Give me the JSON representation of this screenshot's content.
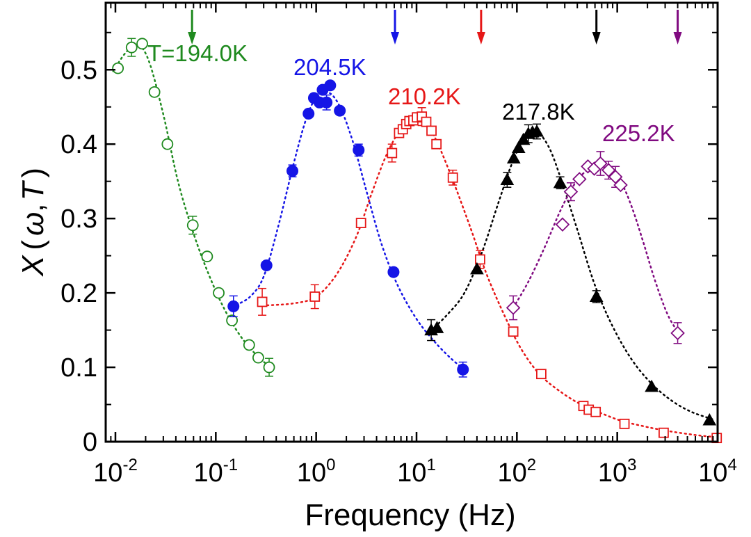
{
  "chart_data": {
    "type": "scatter",
    "title": "",
    "xlabel": "Frequency (Hz)",
    "ylabel_parts": {
      "x": "X",
      "open": "(",
      "omega": "ω",
      "comma": ",",
      "t": "T",
      "close": ")"
    },
    "x_scale": "log",
    "xlim": [
      0.008,
      10000
    ],
    "ylim": [
      0,
      0.59
    ],
    "x_ticks": [
      {
        "value": 0.01,
        "base": "10",
        "exp": "-2"
      },
      {
        "value": 0.1,
        "base": "10",
        "exp": "-1"
      },
      {
        "value": 1,
        "base": "10",
        "exp": "0"
      },
      {
        "value": 10,
        "base": "10",
        "exp": "1"
      },
      {
        "value": 100,
        "base": "10",
        "exp": "2"
      },
      {
        "value": 1000,
        "base": "10",
        "exp": "3"
      },
      {
        "value": 10000,
        "base": "10",
        "exp": "4"
      }
    ],
    "y_ticks": [
      {
        "value": 0,
        "label": "0"
      },
      {
        "value": 0.1,
        "label": "0.1"
      },
      {
        "value": 0.2,
        "label": "0.2"
      },
      {
        "value": 0.3,
        "label": "0.3"
      },
      {
        "value": 0.4,
        "label": "0.4"
      },
      {
        "value": 0.5,
        "label": "0.5"
      }
    ],
    "grid": false,
    "series": [
      {
        "name": "T=194.0K",
        "marker": "circle-open",
        "color": "#1f8a1f",
        "arrow_x": 0.058,
        "x": [
          0.0106,
          0.0145,
          0.0185,
          0.0245,
          0.033,
          0.059,
          0.082,
          0.107,
          0.145,
          0.215,
          0.265,
          0.34
        ],
        "y": [
          0.502,
          0.53,
          0.535,
          0.47,
          0.4,
          0.291,
          0.249,
          0.2,
          0.163,
          0.13,
          0.113,
          0.1
        ],
        "err": [
          0,
          0.012,
          0,
          0,
          0,
          0.012,
          0,
          0,
          0,
          0,
          0,
          0.012
        ]
      },
      {
        "name": "204.5K",
        "marker": "circle-filled",
        "color": "#1515e6",
        "arrow_x": 6.1,
        "x": [
          0.15,
          0.32,
          0.58,
          0.84,
          0.95,
          1.08,
          1.16,
          1.27,
          1.38,
          1.72,
          2.65,
          5.9,
          29
        ],
        "y": [
          0.182,
          0.237,
          0.364,
          0.441,
          0.462,
          0.456,
          0.473,
          0.456,
          0.479,
          0.445,
          0.392,
          0.228,
          0.097
        ],
        "err": [
          0.014,
          0,
          0.008,
          0,
          0,
          0,
          0,
          0.01,
          0,
          0,
          0.008,
          0,
          0.01
        ]
      },
      {
        "name": "210.2K",
        "marker": "square-open",
        "color": "#e61717",
        "arrow_x": 44,
        "x": [
          0.29,
          0.97,
          2.8,
          5.7,
          6.7,
          7.3,
          7.9,
          8.5,
          9.3,
          10.1,
          11.3,
          12.5,
          14.1,
          15.8,
          23,
          43,
          92,
          175,
          460,
          520,
          610,
          1180,
          2900,
          9800
        ],
        "y": [
          0.188,
          0.195,
          0.294,
          0.388,
          0.415,
          0.42,
          0.427,
          0.431,
          0.432,
          0.436,
          0.437,
          0.43,
          0.418,
          0.4,
          0.355,
          0.245,
          0.148,
          0.091,
          0.048,
          0.043,
          0.04,
          0.024,
          0.012,
          0.005
        ],
        "err": [
          0.018,
          0.016,
          0,
          0.012,
          0,
          0,
          0,
          0,
          0,
          0,
          0.012,
          0,
          0,
          0,
          0.01,
          0.012,
          0,
          0,
          0,
          0,
          0,
          0,
          0,
          0
        ]
      },
      {
        "name": "217.8K",
        "marker": "triangle-filled",
        "color": "#000000",
        "arrow_x": 620,
        "x": [
          14,
          16,
          40,
          80,
          93,
          104,
          116,
          130,
          143,
          158,
          270,
          620,
          2200,
          8300
        ],
        "y": [
          0.15,
          0.153,
          0.232,
          0.352,
          0.381,
          0.395,
          0.406,
          0.414,
          0.416,
          0.417,
          0.348,
          0.195,
          0.074,
          0.029
        ],
        "err": [
          0.014,
          0,
          0,
          0.01,
          0,
          0,
          0,
          0.012,
          0,
          0.01,
          0.008,
          0.008,
          0,
          0
        ]
      },
      {
        "name": "225.2K",
        "marker": "diamond-open",
        "color": "#800a80",
        "arrow_x": 4000,
        "x": [
          92,
          285,
          345,
          420,
          510,
          590,
          680,
          820,
          960,
          1080,
          4000
        ],
        "y": [
          0.18,
          0.292,
          0.336,
          0.353,
          0.37,
          0.367,
          0.374,
          0.365,
          0.356,
          0.345,
          0.146
        ],
        "err": [
          0.016,
          0,
          0.012,
          0,
          0,
          0,
          0.016,
          0.012,
          0.014,
          0,
          0.014
        ]
      }
    ],
    "fit_curves": [
      {
        "series": "T=194.0K",
        "x": [
          0.0095,
          0.0125,
          0.0165,
          0.0215,
          0.03,
          0.042,
          0.06,
          0.085,
          0.12,
          0.17,
          0.24,
          0.34
        ],
        "y": [
          0.498,
          0.522,
          0.534,
          0.512,
          0.44,
          0.35,
          0.28,
          0.225,
          0.18,
          0.145,
          0.12,
          0.101
        ]
      },
      {
        "series": "204.5K",
        "x": [
          0.16,
          0.22,
          0.3,
          0.42,
          0.6,
          0.8,
          1.0,
          1.3,
          1.7,
          2.3,
          3.2,
          4.5,
          6.5,
          10,
          15,
          22,
          30
        ],
        "y": [
          0.184,
          0.195,
          0.222,
          0.29,
          0.375,
          0.435,
          0.462,
          0.47,
          0.452,
          0.405,
          0.335,
          0.265,
          0.21,
          0.165,
          0.135,
          0.112,
          0.097
        ]
      },
      {
        "series": "210.2K",
        "x": [
          0.29,
          0.6,
          1.0,
          1.6,
          2.5,
          3.6,
          5.0,
          7.0,
          10,
          13,
          17,
          24,
          35,
          50,
          75,
          110,
          170,
          280,
          450,
          700,
          1100,
          1800,
          3000,
          6000,
          10000
        ],
        "y": [
          0.183,
          0.186,
          0.195,
          0.225,
          0.275,
          0.335,
          0.385,
          0.42,
          0.433,
          0.425,
          0.395,
          0.345,
          0.285,
          0.225,
          0.17,
          0.125,
          0.09,
          0.066,
          0.049,
          0.038,
          0.028,
          0.021,
          0.015,
          0.009,
          0.006
        ]
      },
      {
        "series": "217.8K",
        "x": [
          14,
          20,
          30,
          45,
          65,
          90,
          120,
          160,
          210,
          280,
          400,
          600,
          900,
          1400,
          2200,
          3500,
          5500,
          9000
        ],
        "y": [
          0.15,
          0.17,
          0.2,
          0.255,
          0.32,
          0.375,
          0.408,
          0.415,
          0.395,
          0.35,
          0.285,
          0.21,
          0.155,
          0.11,
          0.078,
          0.055,
          0.04,
          0.03
        ]
      },
      {
        "series": "225.2K",
        "x": [
          92,
          130,
          190,
          270,
          370,
          500,
          650,
          850,
          1100,
          1400,
          1800,
          2400,
          3200,
          4100
        ],
        "y": [
          0.18,
          0.215,
          0.262,
          0.31,
          0.345,
          0.365,
          0.37,
          0.365,
          0.348,
          0.315,
          0.27,
          0.215,
          0.17,
          0.146
        ]
      }
    ]
  }
}
